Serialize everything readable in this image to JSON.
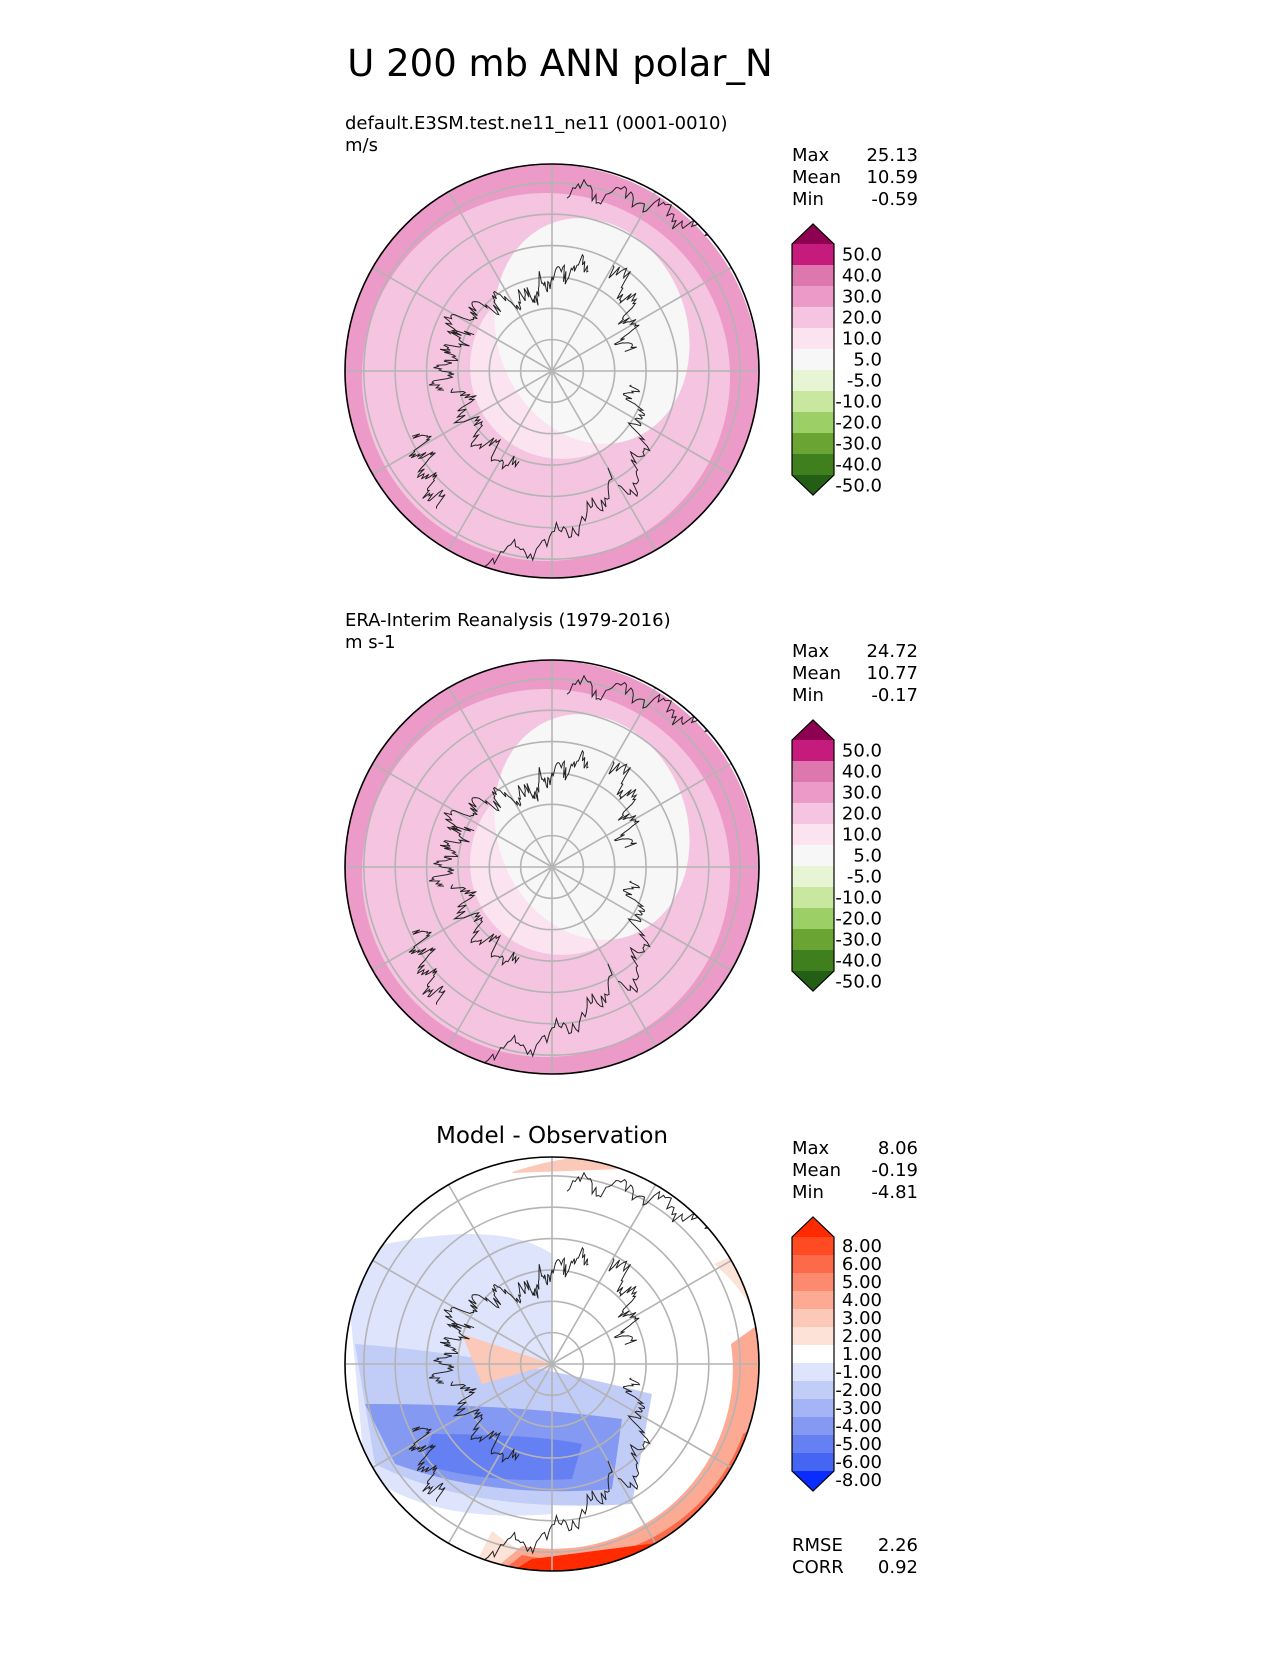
{
  "title": "U 200 mb ANN polar_N",
  "chart_data": [
    {
      "type": "heatmap",
      "projection": "north-polar-stereographic",
      "title": "",
      "subtitle": "default.E3SM.test.ne11_ne11 (0001-0010)",
      "units": "m/s",
      "stats": {
        "max": "25.13",
        "mean": "10.59",
        "min": "-0.59"
      },
      "stats_labels": {
        "max": "Max",
        "mean": "Mean",
        "min": "Min"
      },
      "colorbar": {
        "levels": [
          "50.0",
          "40.0",
          "30.0",
          "20.0",
          "10.0",
          "5.0",
          "-5.0",
          "-10.0",
          "-20.0",
          "-30.0",
          "-40.0",
          "-50.0"
        ],
        "colors": [
          "#8e0152",
          "#c51b7d",
          "#de77ae",
          "#ec9bc9",
          "#f4c4e1",
          "#fbe3ef",
          "#f7f7f7",
          "#e8f5d4",
          "#c8e8a0",
          "#9ccf65",
          "#6aa534",
          "#3f7f1d",
          "#245e15"
        ]
      },
      "field": {
        "pole_color": "#f7f7f7",
        "ring_colors": [
          "#f7f7f7",
          "#f7f7f7",
          "#fbe3ef",
          "#fbe3ef",
          "#f4c4e1",
          "#f4c4e1",
          "#f4c4e1",
          "#f4c4e1",
          "#ec9bc9"
        ]
      }
    },
    {
      "type": "heatmap",
      "projection": "north-polar-stereographic",
      "title": "",
      "subtitle": "ERA-Interim Reanalysis (1979-2016)",
      "units": "m s-1",
      "stats": {
        "max": "24.72",
        "mean": "10.77",
        "min": "-0.17"
      },
      "stats_labels": {
        "max": "Max",
        "mean": "Mean",
        "min": "Min"
      },
      "colorbar": {
        "levels": [
          "50.0",
          "40.0",
          "30.0",
          "20.0",
          "10.0",
          "5.0",
          "-5.0",
          "-10.0",
          "-20.0",
          "-30.0",
          "-40.0",
          "-50.0"
        ],
        "colors": [
          "#8e0152",
          "#c51b7d",
          "#de77ae",
          "#ec9bc9",
          "#f4c4e1",
          "#fbe3ef",
          "#f7f7f7",
          "#e8f5d4",
          "#c8e8a0",
          "#9ccf65",
          "#6aa534",
          "#3f7f1d",
          "#245e15"
        ]
      },
      "field": {
        "pole_color": "#f7f7f7",
        "ring_colors": [
          "#f7f7f7",
          "#f7f7f7",
          "#fbe3ef",
          "#fbe3ef",
          "#f4c4e1",
          "#f4c4e1",
          "#f4c4e1",
          "#f4c4e1",
          "#ec9bc9"
        ]
      }
    },
    {
      "type": "heatmap",
      "projection": "north-polar-stereographic",
      "title": "Model - Observation",
      "subtitle": "",
      "units": "",
      "stats": {
        "max": "8.06",
        "mean": "-0.19",
        "min": "-4.81"
      },
      "stats_labels": {
        "max": "Max",
        "mean": "Mean",
        "min": "Min"
      },
      "metrics": [
        {
          "label": "RMSE",
          "value": "2.26"
        },
        {
          "label": "CORR",
          "value": "0.92"
        }
      ],
      "colorbar": {
        "levels": [
          "8.00",
          "6.00",
          "5.00",
          "4.00",
          "3.00",
          "2.00",
          "1.00",
          "-1.00",
          "-2.00",
          "-3.00",
          "-4.00",
          "-5.00",
          "-6.00",
          "-8.00"
        ],
        "colors": [
          "#ff2a00",
          "#ff4a22",
          "#fd6a4a",
          "#fc8a6e",
          "#fcaa94",
          "#fcc8b8",
          "#fde2d8",
          "#ffffff",
          "#dde4fb",
          "#c2cdf7",
          "#a4b4f4",
          "#8499f2",
          "#6580f2",
          "#4466f3",
          "#0a2cff"
        ]
      },
      "field": {
        "base_color": "#ffffff"
      }
    }
  ]
}
